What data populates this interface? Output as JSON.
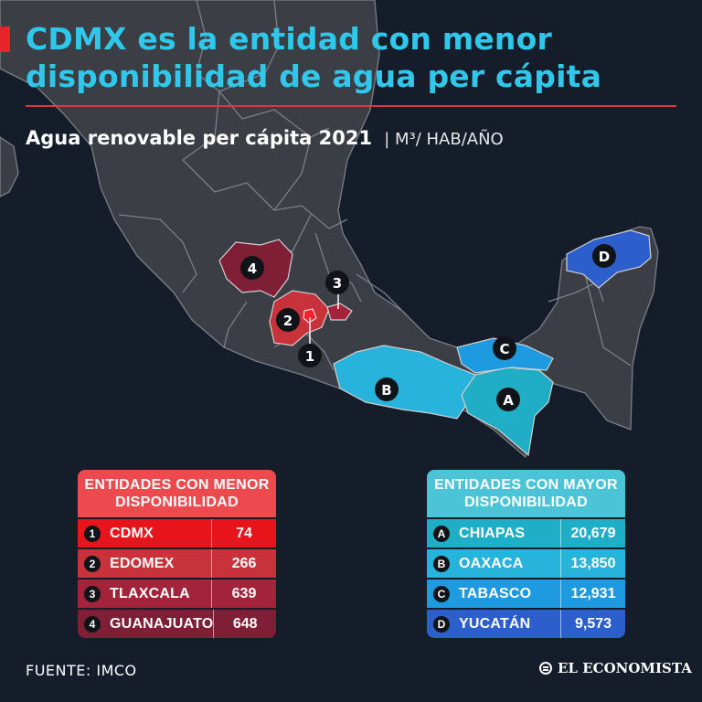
{
  "title": "CDMX es la entidad con menor disponibilidad de agua per cápita",
  "subtitle": "Agua renovable per cápita 2021",
  "units": "| M³/ HAB/AÑO",
  "low_table": {
    "header": "ENTIDADES CON MENOR DISPONIBILIDAD",
    "rows": [
      {
        "rank": "1",
        "name": "CDMX",
        "value": "74",
        "color": "#e8141c"
      },
      {
        "rank": "2",
        "name": "EDOMEX",
        "value": "266",
        "color": "#c8323a"
      },
      {
        "rank": "3",
        "name": "TLAXCALA",
        "value": "639",
        "color": "#a3233a"
      },
      {
        "rank": "4",
        "name": "GUANAJUATO",
        "value": "648",
        "color": "#7e1f35"
      }
    ]
  },
  "high_table": {
    "header": "ENTIDADES CON MAYOR DISPONIBILIDAD",
    "rows": [
      {
        "rank": "A",
        "name": "CHIAPAS",
        "value": "20,679",
        "color": "#20aec6"
      },
      {
        "rank": "B",
        "name": "OAXACA",
        "value": "13,850",
        "color": "#27b3dc"
      },
      {
        "rank": "C",
        "name": "TABASCO",
        "value": "12,931",
        "color": "#1e9ae0"
      },
      {
        "rank": "D",
        "name": "YUCATÁN",
        "value": "9,573",
        "color": "#2c5fcc"
      }
    ]
  },
  "map_markers": [
    "1",
    "2",
    "3",
    "4",
    "A",
    "B",
    "C",
    "D"
  ],
  "source": "FUENTE: IMCO",
  "brand": "EL ECONOMISTA",
  "colors": {
    "background": "#151c2a",
    "land": "#3b3f45",
    "borders": "#7b7f86",
    "title": "#2fc7ea",
    "accent": "#e8242a"
  }
}
